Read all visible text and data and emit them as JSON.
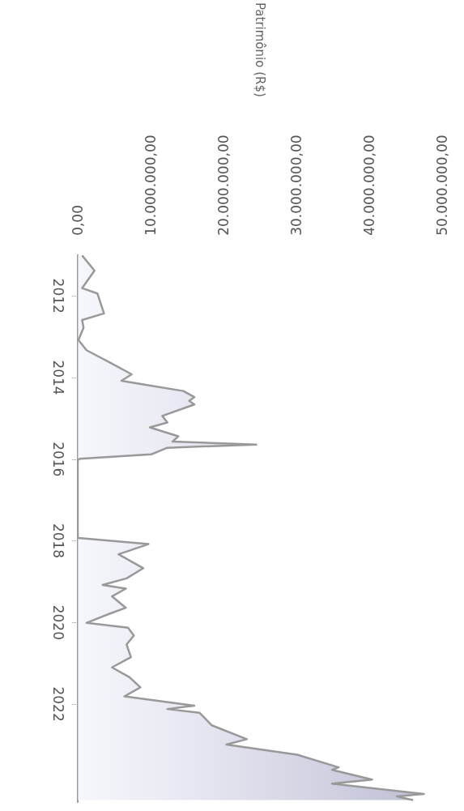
{
  "chart_data": {
    "type": "area",
    "orientation": "horizontal",
    "ylabel": "Patrimônio (R$)",
    "color": "#999999",
    "marker": "none",
    "x": [
      2011.01,
      2011.38,
      2011.81,
      2011.94,
      2012.43,
      2012.59,
      2012.78,
      2013.08,
      2013.33,
      2013.64,
      2013.92,
      2014.08,
      2014.17,
      2014.33,
      2014.48,
      2014.57,
      2014.66,
      2014.94,
      2015.1,
      2015.22,
      2015.44,
      2015.57,
      2015.64,
      2015.72,
      2015.88,
      2015.99,
      2016.02,
      2017.9,
      2017.93,
      2018.08,
      2018.33,
      2018.67,
      2018.92,
      2019.08,
      2019.17,
      2019.36,
      2019.64,
      2019.79,
      2020.01,
      2020.13,
      2020.32,
      2020.54,
      2020.85,
      2021.1,
      2021.34,
      2021.59,
      2021.81,
      2022.04,
      2022.12,
      2022.21,
      2022.52,
      2022.86,
      2022.99,
      2023.24,
      2023.55,
      2023.61,
      2023.85,
      2023.95,
      2024.2,
      2024.26,
      2024.35
    ],
    "values": [
      600000,
      2300000,
      600000,
      2700000,
      3600000,
      600000,
      800000,
      100000,
      1200000,
      4500000,
      7400000,
      6000000,
      9000000,
      14500000,
      16000000,
      15300000,
      16000000,
      11600000,
      12300000,
      9900000,
      13800000,
      13000000,
      24500000,
      12300000,
      10100000,
      300000,
      0,
      0,
      100000,
      9700000,
      5600000,
      9000000,
      6700000,
      3400000,
      6600000,
      4700000,
      6600000,
      4300000,
      1200000,
      6900000,
      7700000,
      6700000,
      7300000,
      4700000,
      7100000,
      8600000,
      6400000,
      16000000,
      12300000,
      16700000,
      18400000,
      23200000,
      20400000,
      30100000,
      35800000,
      34900000,
      40400000,
      34900000,
      47500000,
      43800000,
      46000000
    ],
    "ylim": [
      2024.4,
      2011
    ],
    "yticks": [
      2012,
      2014,
      2016,
      2018,
      2020,
      2022
    ],
    "xlim": [
      0,
      50000000
    ],
    "xticks": [
      {
        "value": 0,
        "label": "0,00"
      },
      {
        "value": 10000000,
        "label": "10.000.000,00"
      },
      {
        "value": 20000000,
        "label": "20.000.000,00"
      },
      {
        "value": 30000000,
        "label": "30.000.000,00"
      },
      {
        "value": 40000000,
        "label": "40.000.000,00"
      },
      {
        "value": 50000000,
        "label": "50.000.000,00"
      }
    ]
  }
}
